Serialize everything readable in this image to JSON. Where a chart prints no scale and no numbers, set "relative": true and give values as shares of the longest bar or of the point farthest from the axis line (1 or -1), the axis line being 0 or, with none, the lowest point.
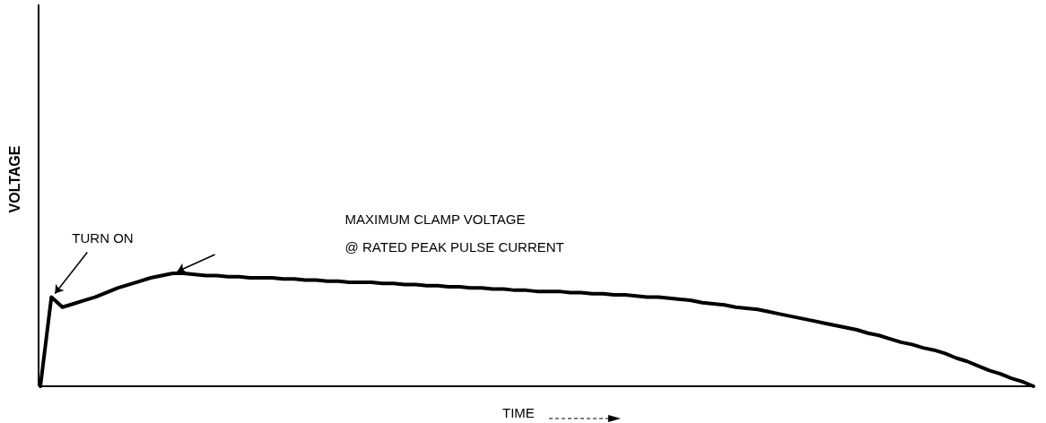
{
  "chart_data": {
    "type": "line",
    "relative": true,
    "ylabel": "VOLTAGE",
    "xlabel": "TIME",
    "annotations": [
      "TURN ON",
      "MAXIMUM CLAMP VOLTAGE\n@ RATED PEAK PULSE CURRENT"
    ],
    "categories": [
      null,
      null,
      null,
      null,
      null,
      null,
      null,
      null,
      null,
      null,
      null,
      null,
      null,
      null,
      null,
      null,
      null,
      null,
      null,
      null,
      null,
      null,
      null,
      null,
      null,
      null,
      null,
      null,
      null,
      null,
      null,
      null,
      null,
      null,
      null,
      null,
      null,
      null,
      null,
      null,
      null,
      null,
      null,
      null,
      null,
      null,
      null,
      null,
      null,
      null,
      null,
      null,
      null,
      null,
      null,
      null,
      null,
      null,
      null,
      null,
      null,
      null,
      null,
      null,
      null,
      null,
      null,
      null,
      null,
      null,
      null,
      null,
      null,
      null,
      null,
      null,
      null,
      null,
      null,
      null,
      null,
      null,
      null,
      null,
      null,
      null,
      null,
      null,
      null,
      null,
      null
    ],
    "series": [
      {
        "color": "#000000",
        "values": [
          0,
          0.79,
          0.7,
          0.73,
          0.76,
          0.79,
          0.83,
          0.87,
          0.9,
          0.93,
          0.96,
          0.98,
          1,
          1,
          0.99,
          0.98,
          0.98,
          0.97,
          0.97,
          0.96,
          0.96,
          0.96,
          0.95,
          0.95,
          0.94,
          0.94,
          0.93,
          0.93,
          0.92,
          0.92,
          0.92,
          0.91,
          0.91,
          0.9,
          0.9,
          0.89,
          0.89,
          0.88,
          0.88,
          0.87,
          0.87,
          0.86,
          0.86,
          0.85,
          0.85,
          0.84,
          0.84,
          0.84,
          0.83,
          0.83,
          0.82,
          0.82,
          0.81,
          0.81,
          0.8,
          0.79,
          0.79,
          0.78,
          0.77,
          0.76,
          0.74,
          0.73,
          0.72,
          0.7,
          0.69,
          0.68,
          0.66,
          0.64,
          0.62,
          0.6,
          0.58,
          0.56,
          0.54,
          0.52,
          0.5,
          0.47,
          0.45,
          0.42,
          0.39,
          0.37,
          0.34,
          0.32,
          0.29,
          0.25,
          0.22,
          0.18,
          0.14,
          0.11,
          0.07,
          0.04,
          0
        ]
      }
    ],
    "marker": "none",
    "line_style": "solid"
  }
}
